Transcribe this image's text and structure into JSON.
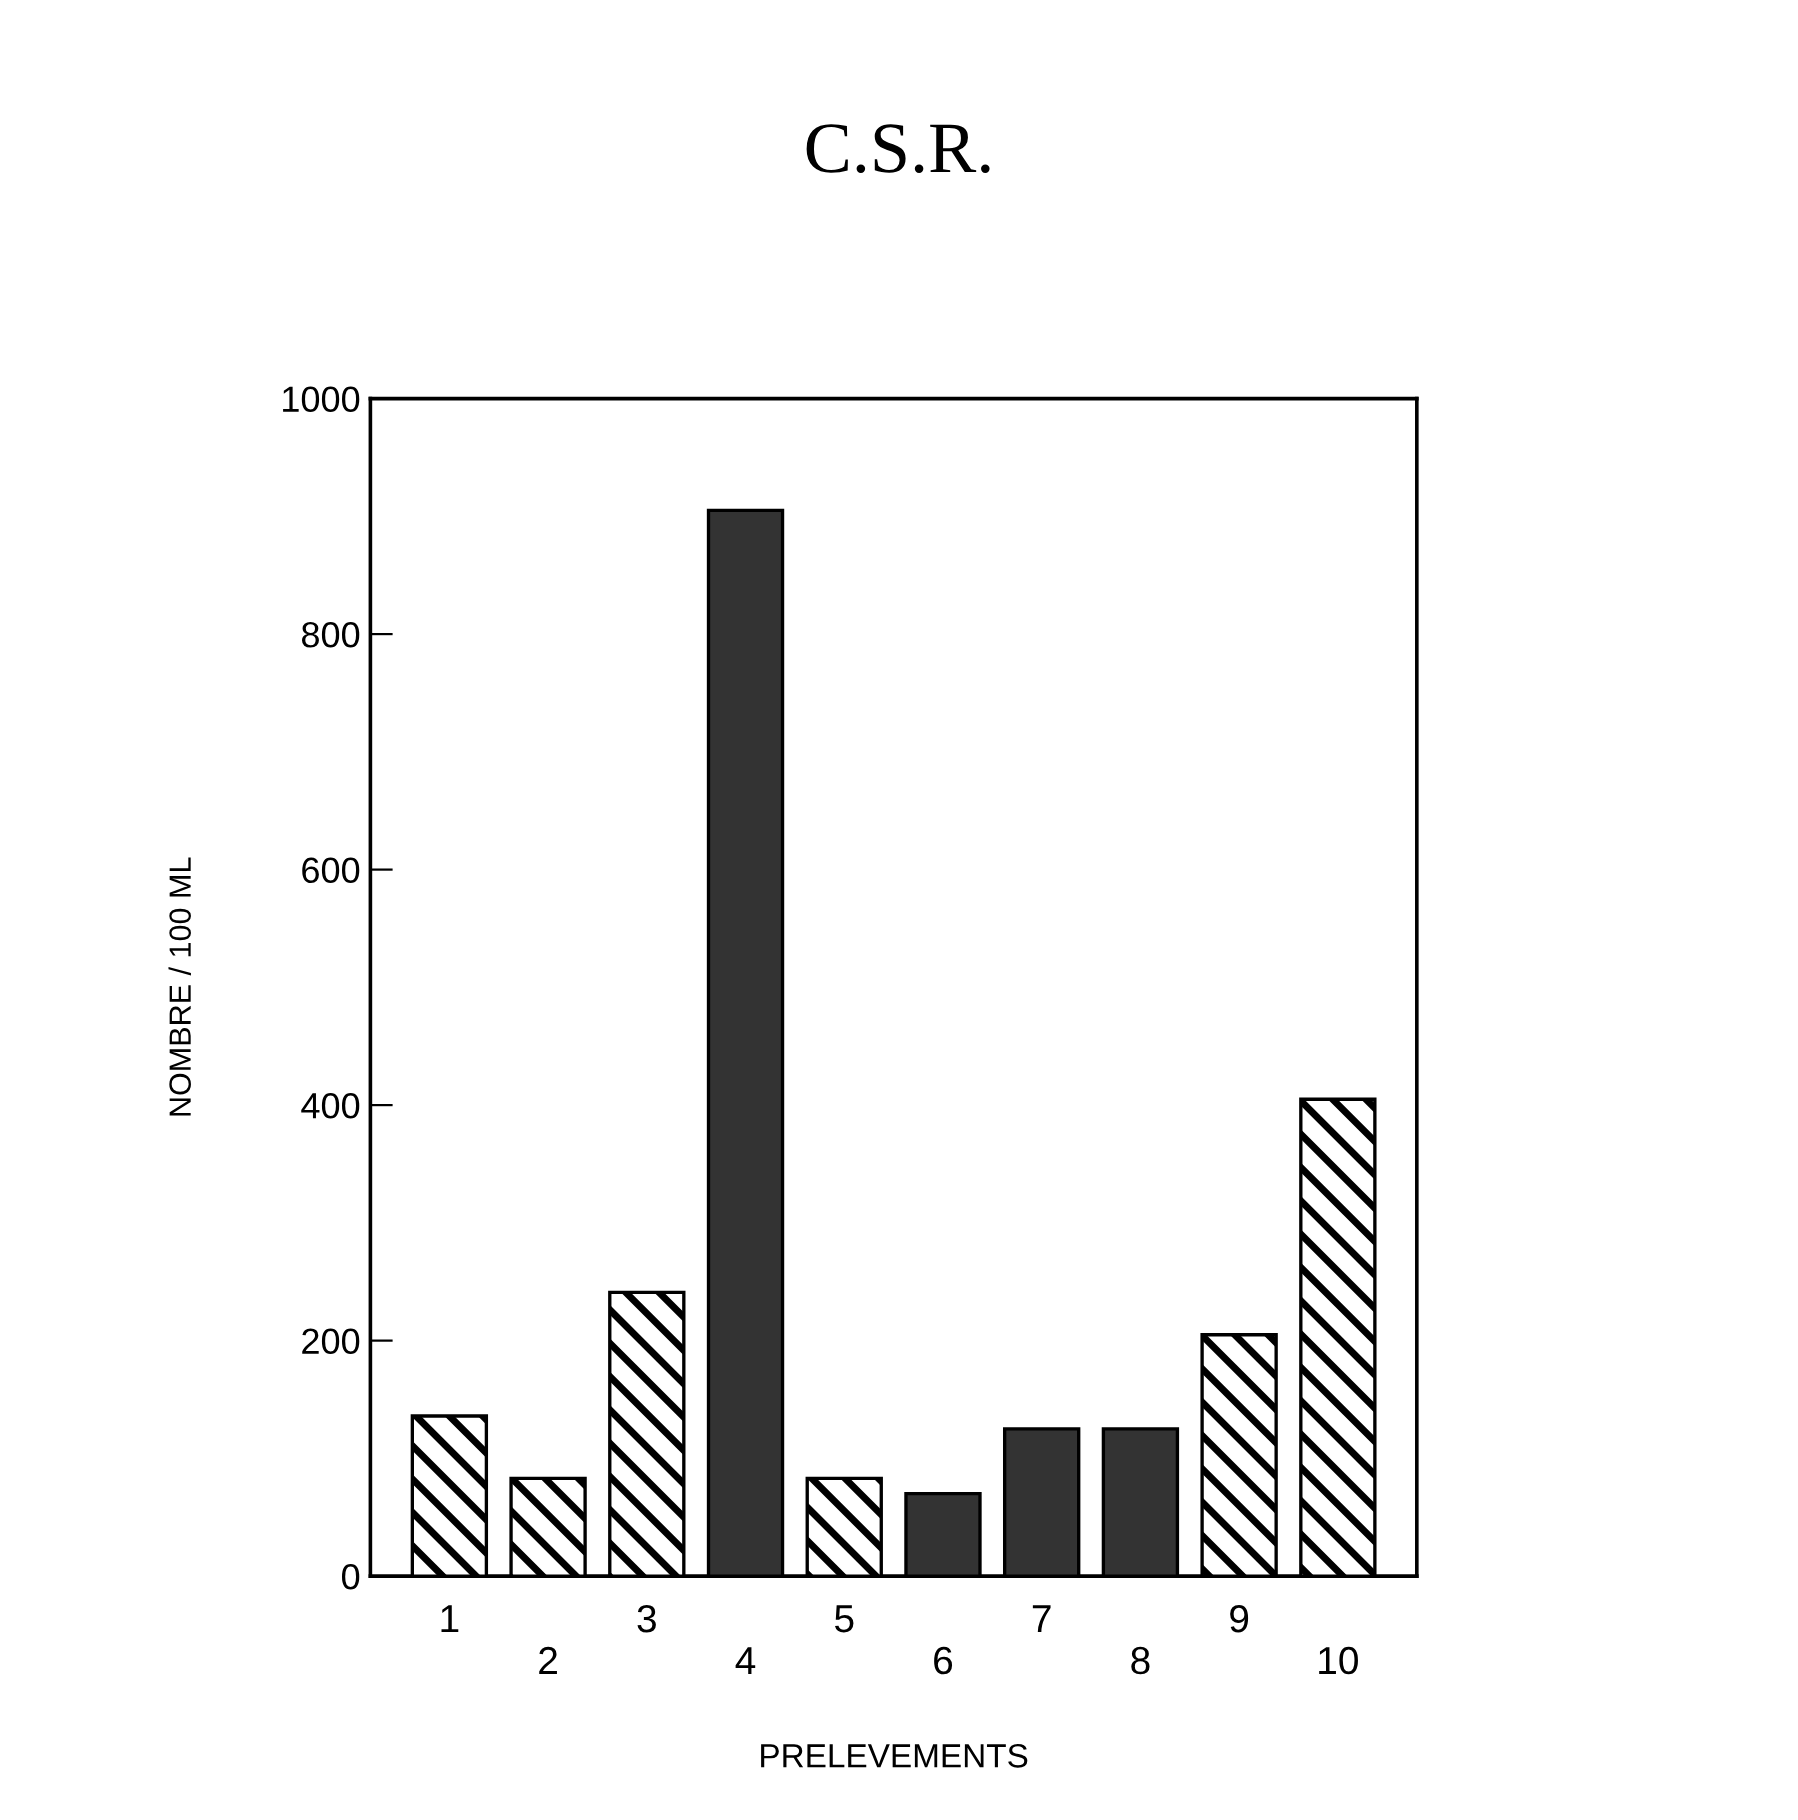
{
  "chart_data": {
    "type": "bar",
    "title": "C.S.R.",
    "xlabel": "PRELEVEMENTS",
    "ylabel": "NOMBRE / 100 ML",
    "categories": [
      "1",
      "2",
      "3",
      "4",
      "5",
      "6",
      "7",
      "8",
      "9",
      "10"
    ],
    "values": [
      136,
      83,
      241,
      905,
      83,
      70,
      125,
      125,
      205,
      405
    ],
    "colors": [
      "#000000",
      "#000000",
      "#000000",
      "#333333",
      "#000000",
      "#333333",
      "#333333",
      "#333333",
      "#000000",
      "#000000"
    ],
    "ylim": [
      0,
      1000
    ],
    "yticks": [
      0,
      200,
      400,
      600,
      800,
      1000
    ],
    "grid": false
  }
}
